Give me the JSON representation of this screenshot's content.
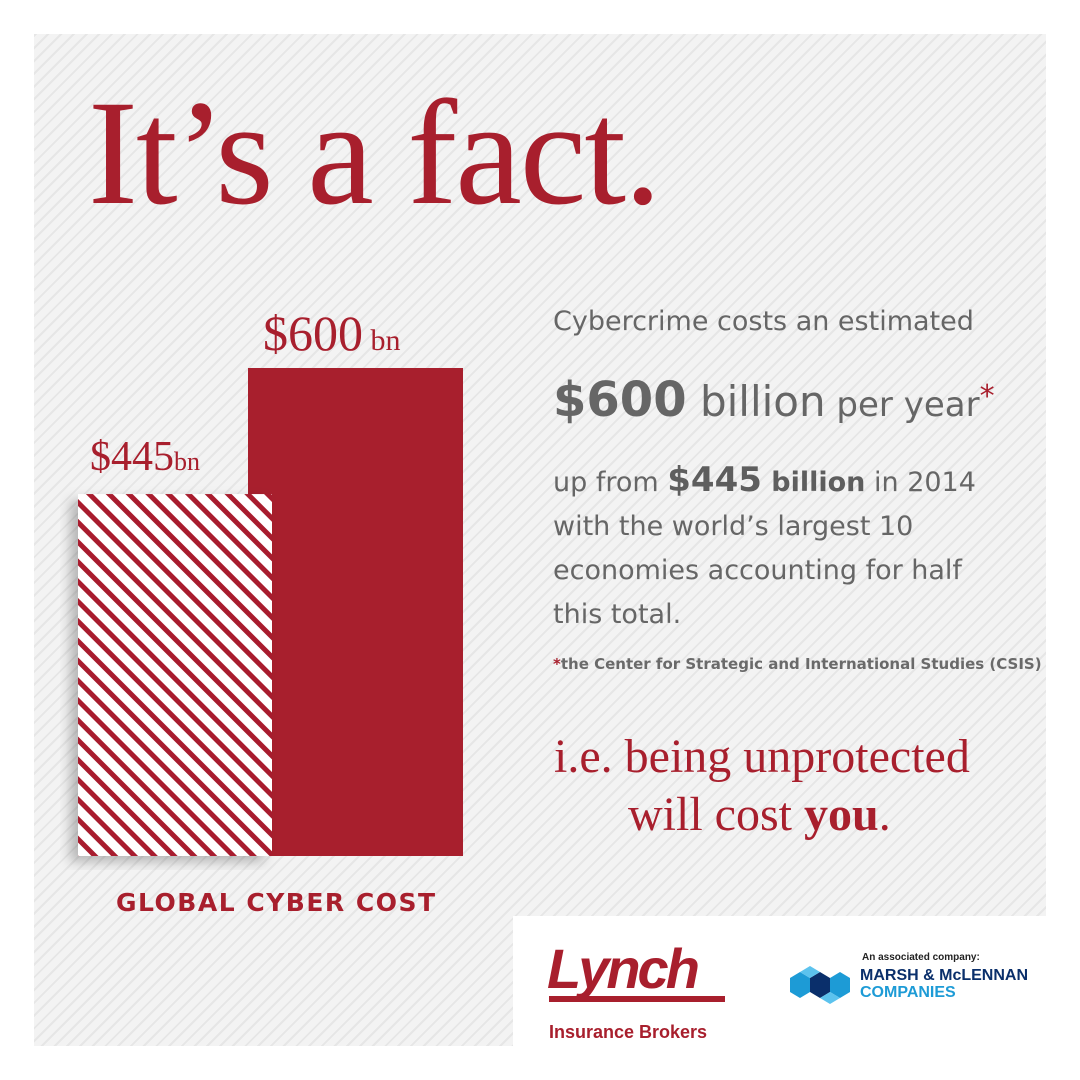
{
  "headline": "It’s a fact.",
  "chart_data": {
    "type": "bar",
    "xlabel": "GLOBAL CYBER COST",
    "ylim": [
      0,
      600
    ],
    "series": [
      {
        "value": 445,
        "label_num": "$445",
        "label_unit": "bn",
        "style": "hatched"
      },
      {
        "value": 600,
        "label_num": "$600",
        "label_unit": " bn",
        "style": "solid"
      }
    ],
    "colors": {
      "bar": "#a81f2d",
      "hatch_bg": "#ffffff"
    }
  },
  "copy": {
    "intro": "Cybercrime costs an estimated",
    "big_amount": "$600",
    "big_unit": " billion",
    "big_suffix": " per year",
    "big_star": "*",
    "body_prefix": "up from ",
    "body_amount": "$445",
    "body_unit": " billion",
    "body_rest": " in 2014 with the world’s largest 10 economies accounting for half this total.",
    "footnote_star": "*",
    "footnote": "the Center for Strategic and International Studies (CSIS)",
    "tagline_line1": "i.e. being unprotected",
    "tagline_line2_pre": "will cost ",
    "tagline_line2_bold": "you",
    "tagline_line2_post": "."
  },
  "logos": {
    "lynch_word": "Lynch",
    "lynch_sub": "Insurance Brokers",
    "associated": "An associated company:",
    "mmc_line1": "MARSH & McLENNAN",
    "mmc_line2": "COMPANIES"
  },
  "colors": {
    "accent": "#a81f2d",
    "text_gray": "#666666",
    "mmc_navy": "#0a2f6b",
    "mmc_blue": "#1d9bd6"
  }
}
